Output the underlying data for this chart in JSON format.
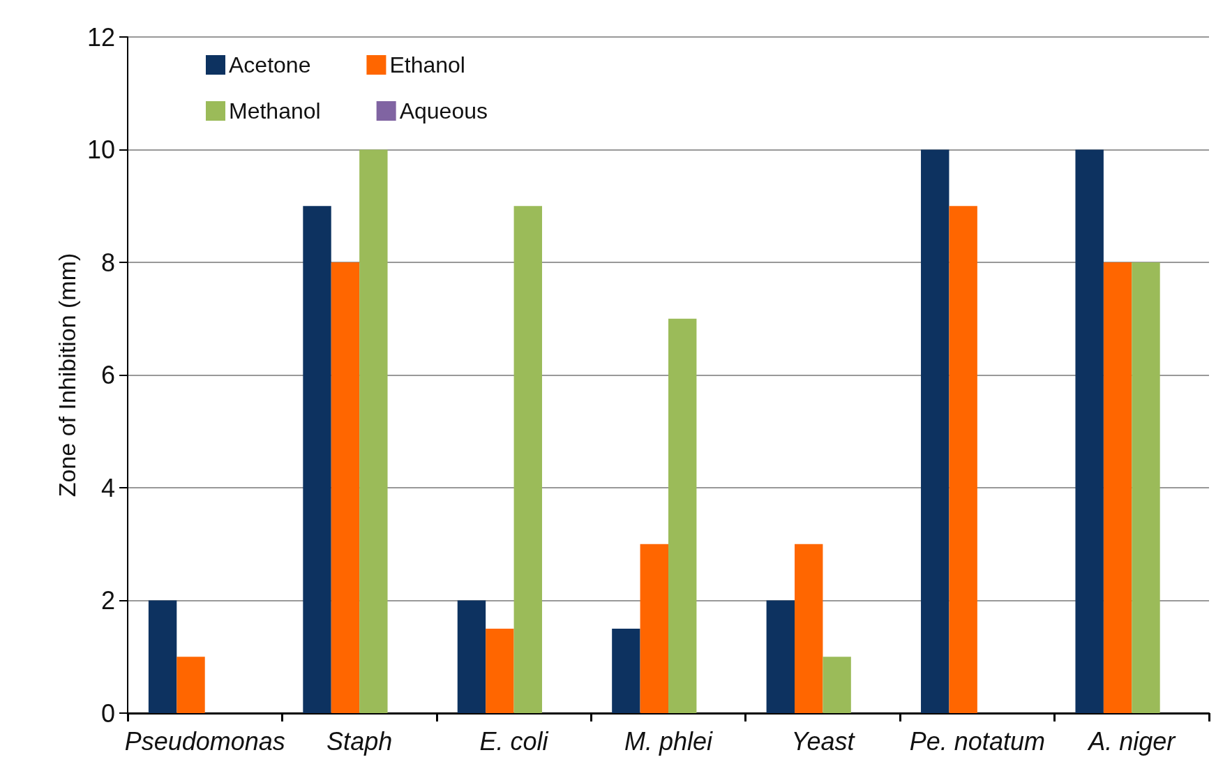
{
  "chart_data": {
    "type": "bar",
    "ylabel": "Zone of Inhibition (mm)",
    "categories": [
      "Pseudomonas",
      "Staph",
      "E. coli",
      "M. phlei",
      "Yeast",
      "Pe. notatum",
      "A. niger"
    ],
    "series": [
      {
        "name": "Acetone",
        "color": "#0d3260",
        "values": [
          2,
          9,
          2,
          1.5,
          2,
          10,
          10
        ]
      },
      {
        "name": "Ethanol",
        "color": "#ff6600",
        "values": [
          1,
          8,
          1.5,
          3,
          3,
          9,
          8
        ]
      },
      {
        "name": "Methanol",
        "color": "#9bbb59",
        "values": [
          null,
          10,
          9,
          7,
          1,
          null,
          8
        ]
      },
      {
        "name": "Aqueous",
        "color": "#8064a2",
        "values": [
          null,
          null,
          null,
          null,
          null,
          null,
          null
        ]
      }
    ],
    "ylim": [
      0,
      12
    ],
    "yticks": [
      0,
      2,
      4,
      6,
      8,
      10,
      12
    ],
    "grid": "y",
    "legend": "top left"
  }
}
